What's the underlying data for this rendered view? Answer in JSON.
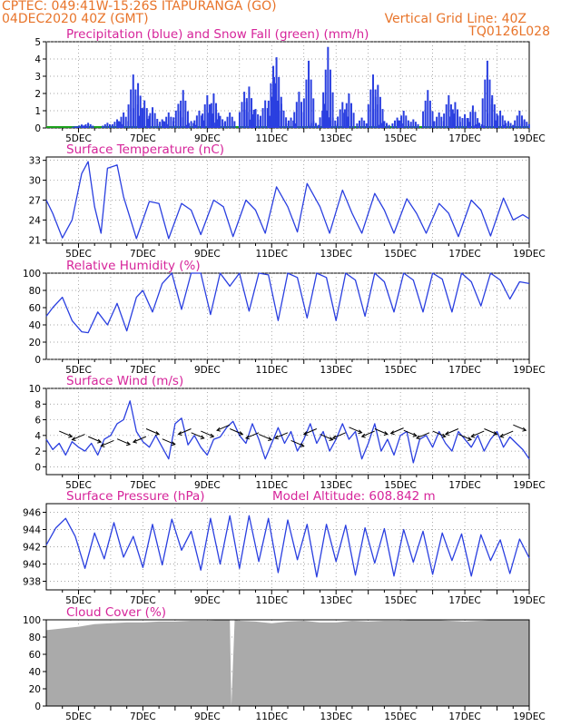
{
  "header": {
    "line1_left": "CPTEC:   049:41W-15:26S   ITAPURANGA (GO)",
    "line2_left": "04DEC2020 40Z (GMT)",
    "line2_right": "Vertical Grid Line: 40Z",
    "line3_right": "TQ0126L028"
  },
  "colors": {
    "header": "#e8742a",
    "title": "#d6249a",
    "series": "#2a3fe0",
    "snow": "#1aa01a",
    "cloud": "#aaaaaa",
    "grid": "#888888"
  },
  "x_axis_labels": [
    "5DEC",
    "7DEC",
    "9DEC",
    "11DEC",
    "13DEC",
    "15DEC",
    "17DEC",
    "19DEC"
  ],
  "panels": [
    {
      "key": "precip",
      "title": "Precipitation (blue) and Snow Fall (green) (mm/h)",
      "ylim": [
        0,
        5
      ],
      "yticks": [
        0,
        1,
        2,
        3,
        4,
        5
      ]
    },
    {
      "key": "temp",
      "title": "Surface Temperature (nC)",
      "ylim": [
        20.5,
        33.5
      ],
      "yticks": [
        21,
        24,
        27,
        30,
        33
      ]
    },
    {
      "key": "rh",
      "title": "Relative Humidity (%)",
      "ylim": [
        0,
        100
      ],
      "yticks": [
        0,
        20,
        40,
        60,
        80,
        100
      ]
    },
    {
      "key": "wind",
      "title": "Surface Wind (m/s)",
      "ylim": [
        -1,
        10
      ],
      "yticks": [
        0,
        2,
        4,
        6,
        8,
        10
      ]
    },
    {
      "key": "press",
      "title": "Surface Pressure (hPa)",
      "extra": "Model Altitude: 608.842 m",
      "ylim": [
        937,
        947
      ],
      "yticks": [
        938,
        940,
        942,
        944,
        946
      ]
    },
    {
      "key": "cloud",
      "title": "Cloud Cover (%)",
      "ylim": [
        0,
        100
      ],
      "yticks": [
        0,
        20,
        40,
        60,
        80,
        100
      ]
    }
  ],
  "chart_data": [
    {
      "type": "bar",
      "title": "Precipitation (blue) and Snow Fall (green) (mm/h)",
      "ylim": [
        0,
        5
      ],
      "x_range_days": [
        4.0,
        19.0
      ],
      "series": [
        {
          "values_peaks": [
            [
              4.9,
              0.1
            ],
            [
              5.1,
              0.2
            ],
            [
              5.3,
              0.3
            ],
            [
              5.9,
              0.3
            ],
            [
              6.2,
              0.5
            ],
            [
              6.4,
              0.9
            ],
            [
              6.7,
              3.1
            ],
            [
              6.85,
              2.6
            ],
            [
              7.05,
              1.6
            ],
            [
              7.3,
              1.2
            ],
            [
              7.6,
              0.5
            ],
            [
              7.8,
              0.9
            ],
            [
              8.1,
              1.4
            ],
            [
              8.25,
              2.2
            ],
            [
              8.5,
              0.4
            ],
            [
              8.75,
              1.0
            ],
            [
              9.0,
              1.9
            ],
            [
              9.2,
              2.0
            ],
            [
              9.4,
              0.7
            ],
            [
              9.7,
              0.9
            ],
            [
              10.15,
              2.1
            ],
            [
              10.3,
              2.4
            ],
            [
              10.5,
              1.1
            ],
            [
              10.8,
              1.6
            ],
            [
              11.05,
              3.6
            ],
            [
              11.15,
              4.1
            ],
            [
              11.3,
              1.4
            ],
            [
              11.6,
              0.6
            ],
            [
              11.85,
              2.1
            ],
            [
              12.15,
              3.9
            ],
            [
              12.3,
              0.4
            ],
            [
              12.65,
              1.4
            ],
            [
              12.75,
              4.7
            ],
            [
              12.9,
              0.6
            ],
            [
              13.2,
              1.5
            ],
            [
              13.4,
              2.0
            ],
            [
              13.8,
              0.6
            ],
            [
              14.15,
              3.1
            ],
            [
              14.3,
              2.5
            ],
            [
              14.5,
              0.4
            ],
            [
              14.9,
              0.6
            ],
            [
              15.1,
              1.0
            ],
            [
              15.4,
              0.5
            ],
            [
              15.85,
              2.2
            ],
            [
              16.2,
              0.9
            ],
            [
              16.5,
              1.9
            ],
            [
              16.7,
              1.5
            ],
            [
              17.0,
              0.8
            ],
            [
              17.25,
              1.3
            ],
            [
              17.45,
              0.3
            ],
            [
              17.7,
              3.9
            ],
            [
              17.85,
              1.9
            ],
            [
              18.1,
              1.0
            ],
            [
              18.35,
              0.4
            ],
            [
              18.7,
              1.0
            ],
            [
              18.85,
              0.5
            ]
          ]
        }
      ]
    },
    {
      "type": "line",
      "title": "Surface Temperature (nC)",
      "ylim": [
        20.5,
        33.5
      ],
      "x": [
        4.0,
        4.2,
        4.5,
        4.8,
        5.1,
        5.3,
        5.5,
        5.7,
        5.9,
        6.2,
        6.4,
        6.8,
        7.2,
        7.5,
        7.8,
        8.2,
        8.5,
        8.8,
        9.2,
        9.5,
        9.8,
        10.2,
        10.5,
        10.8,
        11.15,
        11.5,
        11.8,
        12.1,
        12.5,
        12.8,
        13.2,
        13.5,
        13.8,
        14.2,
        14.5,
        14.8,
        15.2,
        15.5,
        15.8,
        16.2,
        16.5,
        16.8,
        17.2,
        17.5,
        17.8,
        18.2,
        18.5,
        18.8,
        19.0
      ],
      "y": [
        27,
        25,
        21.3,
        24,
        31,
        32.8,
        26,
        22,
        31.8,
        32.3,
        27.5,
        21.2,
        26.8,
        26.5,
        21.2,
        26.5,
        25.5,
        21.8,
        27,
        26,
        21.5,
        27,
        25.5,
        22,
        29,
        26,
        22.2,
        29.5,
        26,
        22,
        28.5,
        25,
        22,
        28,
        25.5,
        22,
        27.2,
        25,
        22,
        26.5,
        25,
        21.5,
        27,
        25.5,
        21.6,
        27.3,
        24,
        24.8,
        24.2
      ]
    },
    {
      "type": "line",
      "title": "Relative Humidity (%)",
      "ylim": [
        0,
        100
      ],
      "x": [
        4.0,
        4.2,
        4.5,
        4.8,
        5.1,
        5.3,
        5.6,
        5.9,
        6.2,
        6.5,
        6.8,
        7.0,
        7.3,
        7.6,
        7.9,
        8.2,
        8.5,
        8.8,
        9.1,
        9.4,
        9.7,
        10.0,
        10.3,
        10.6,
        10.9,
        11.2,
        11.5,
        11.8,
        12.1,
        12.4,
        12.7,
        13.0,
        13.3,
        13.6,
        13.9,
        14.2,
        14.5,
        14.8,
        15.1,
        15.4,
        15.7,
        16.0,
        16.3,
        16.6,
        16.9,
        17.2,
        17.5,
        17.8,
        18.1,
        18.4,
        18.7,
        19.0
      ],
      "y": [
        50,
        60,
        72,
        45,
        32,
        31,
        55,
        40,
        65,
        33,
        72,
        80,
        55,
        88,
        100,
        58,
        100,
        100,
        52,
        100,
        85,
        100,
        56,
        100,
        98,
        45,
        100,
        95,
        48,
        100,
        95,
        45,
        100,
        92,
        50,
        100,
        90,
        55,
        100,
        92,
        55,
        100,
        93,
        55,
        100,
        90,
        62,
        100,
        92,
        70,
        90,
        88
      ]
    },
    {
      "type": "line",
      "title": "Surface Wind (m/s)",
      "ylim": [
        -1,
        10
      ],
      "x": [
        4.0,
        4.2,
        4.4,
        4.6,
        4.8,
        5.0,
        5.2,
        5.4,
        5.6,
        5.8,
        6.0,
        6.2,
        6.4,
        6.6,
        6.8,
        7.0,
        7.2,
        7.4,
        7.6,
        7.8,
        8.0,
        8.2,
        8.4,
        8.6,
        8.8,
        9.0,
        9.2,
        9.4,
        9.6,
        9.8,
        10.0,
        10.2,
        10.4,
        10.6,
        10.8,
        11.0,
        11.2,
        11.4,
        11.6,
        11.8,
        12.0,
        12.2,
        12.4,
        12.6,
        12.8,
        13.0,
        13.2,
        13.4,
        13.6,
        13.8,
        14.0,
        14.2,
        14.4,
        14.6,
        14.8,
        15.0,
        15.2,
        15.4,
        15.6,
        15.8,
        16.0,
        16.2,
        16.4,
        16.6,
        16.8,
        17.0,
        17.2,
        17.4,
        17.6,
        17.8,
        18.0,
        18.2,
        18.4,
        18.6,
        18.8,
        19.0
      ],
      "y": [
        3.5,
        2.2,
        3.0,
        1.5,
        3.2,
        2.5,
        2.0,
        3.0,
        1.5,
        3.5,
        4.0,
        5.5,
        6.0,
        8.4,
        4.5,
        3.2,
        2.5,
        4.0,
        2.5,
        1.0,
        5.5,
        6.2,
        2.8,
        4.0,
        2.5,
        1.5,
        3.5,
        3.8,
        5.0,
        5.8,
        4.0,
        3.0,
        5.5,
        3.5,
        1.0,
        3.0,
        5.0,
        3.0,
        4.5,
        2.0,
        3.5,
        5.5,
        3.0,
        4.5,
        2.0,
        3.5,
        5.5,
        3.5,
        4.5,
        1.0,
        3.0,
        5.5,
        2.0,
        3.5,
        1.5,
        4.0,
        4.5,
        0.5,
        3.5,
        4.0,
        2.5,
        4.5,
        3.0,
        2.0,
        4.5,
        3.5,
        2.5,
        4.0,
        2.0,
        3.5,
        4.5,
        2.5,
        3.8,
        3.0,
        2.2,
        1.0
      ]
    },
    {
      "type": "line",
      "title": "Surface Pressure (hPa)",
      "ylim": [
        937,
        947
      ],
      "x": [
        4.0,
        4.3,
        4.6,
        4.9,
        5.2,
        5.5,
        5.8,
        6.1,
        6.4,
        6.7,
        7.0,
        7.3,
        7.6,
        7.9,
        8.2,
        8.5,
        8.8,
        9.1,
        9.4,
        9.7,
        10.0,
        10.3,
        10.6,
        10.9,
        11.2,
        11.5,
        11.8,
        12.1,
        12.4,
        12.7,
        13.0,
        13.3,
        13.6,
        13.9,
        14.2,
        14.5,
        14.8,
        15.1,
        15.4,
        15.7,
        16.0,
        16.3,
        16.6,
        16.9,
        17.2,
        17.5,
        17.8,
        18.1,
        18.4,
        18.7,
        19.0
      ],
      "y": [
        942.2,
        944.2,
        945.3,
        943.2,
        939.5,
        943.6,
        940.6,
        944.8,
        940.8,
        943.2,
        939.6,
        944.6,
        939.9,
        945.2,
        941.6,
        943.8,
        939.3,
        945.3,
        940.0,
        945.6,
        939.5,
        945.6,
        940.3,
        945.3,
        939.0,
        945.1,
        940.5,
        944.6,
        938.5,
        944.6,
        940.3,
        944.5,
        938.7,
        944.2,
        940.1,
        944.1,
        938.6,
        944.0,
        940.2,
        943.8,
        938.8,
        943.6,
        940.4,
        943.5,
        938.6,
        943.4,
        940.4,
        942.8,
        938.9,
        942.9,
        940.7
      ]
    },
    {
      "type": "area",
      "title": "Cloud Cover (%)",
      "ylim": [
        0,
        100
      ],
      "x": [
        4.0,
        4.5,
        5.0,
        5.5,
        6.0,
        6.5,
        7.0,
        7.5,
        8.0,
        8.5,
        9.0,
        9.5,
        9.7,
        9.75,
        9.85,
        10.0,
        10.5,
        11.0,
        11.5,
        12.0,
        12.5,
        13.0,
        13.5,
        14.0,
        14.5,
        15.0,
        15.5,
        16.0,
        16.5,
        17.0,
        17.5,
        18.0,
        18.5,
        19.0
      ],
      "y": [
        88,
        90,
        92,
        95,
        96,
        97,
        97,
        98,
        98,
        99,
        99,
        100,
        100,
        0,
        100,
        99,
        98,
        96,
        98,
        99,
        97,
        97,
        99,
        98,
        99,
        99,
        100,
        100,
        99,
        98,
        99,
        100,
        100,
        100
      ]
    }
  ]
}
